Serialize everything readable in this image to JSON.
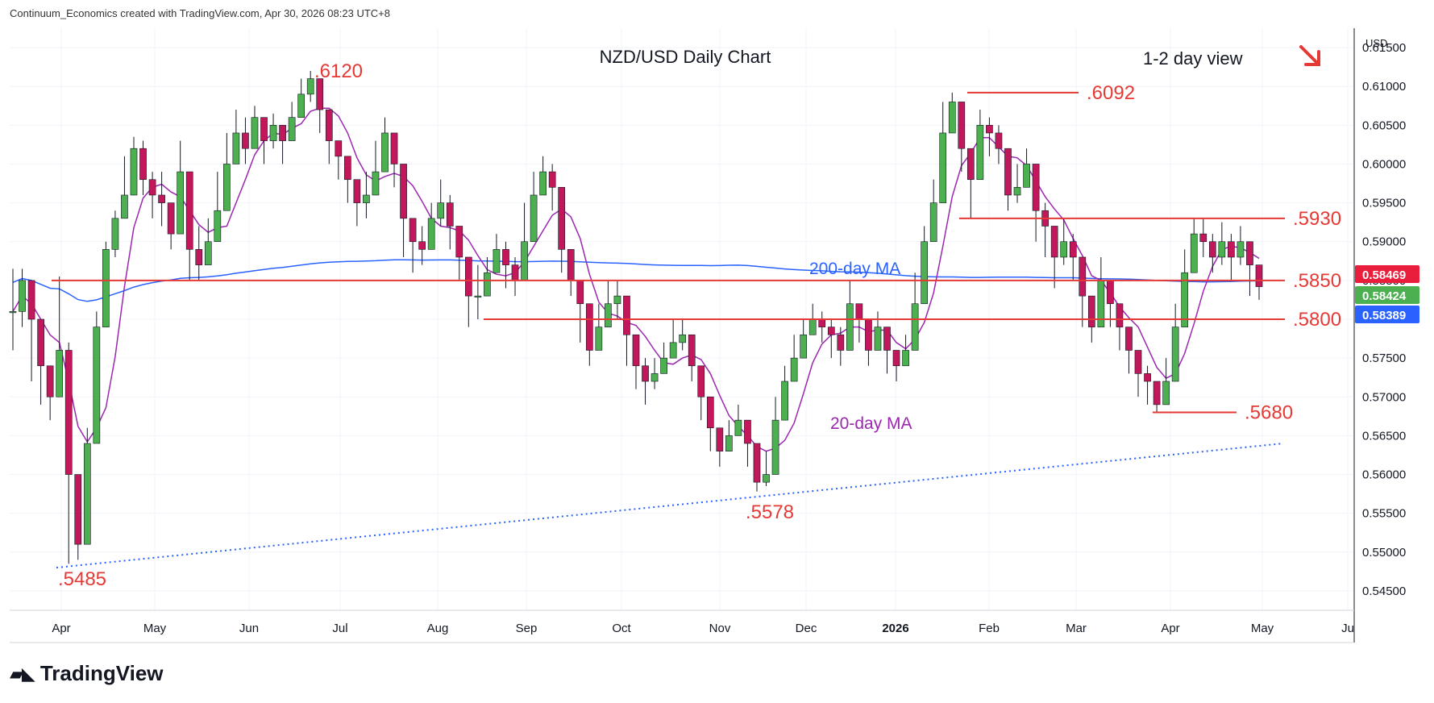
{
  "header": {
    "note": "Continuum_Economics created with TradingView.com, Apr 30, 2026 08:23 UTC+8"
  },
  "footer": {
    "brand": "TradingView"
  },
  "chart_data": {
    "type": "candlestick",
    "title": "NZD/USD Daily Chart",
    "view_label": "1-2 day view",
    "view_arrow": "down-right-arrow",
    "currency": "USD",
    "yticks": [
      "0.61500",
      "0.61000",
      "0.60500",
      "0.60000",
      "0.59500",
      "0.59000",
      "0.58500",
      "0.58000",
      "0.57500",
      "0.57000",
      "0.56500",
      "0.56000",
      "0.55500",
      "0.55000",
      "0.54500"
    ],
    "ylim": [
      0.5425,
      0.6175
    ],
    "xlabels": [
      "Apr",
      "May",
      "Jun",
      "Jul",
      "Aug",
      "Sep",
      "Oct",
      "Nov",
      "Dec",
      "2026",
      "Feb",
      "Mar",
      "Apr",
      "May",
      "Ju"
    ],
    "price_badges": [
      {
        "text": "0.58469",
        "color": "#e91e3c"
      },
      {
        "text": "0.58424",
        "color": "#4caf50"
      },
      {
        "text": "0.58389",
        "color": "#2962ff"
      }
    ],
    "levels": [
      {
        "label": ".6092",
        "value": 0.6092
      },
      {
        "label": ".5930",
        "value": 0.593
      },
      {
        "label": ".5850",
        "value": 0.585
      },
      {
        "label": ".5800",
        "value": 0.58
      },
      {
        "label": ".5680",
        "value": 0.568
      }
    ],
    "annotations": [
      {
        "label": ".6120",
        "value": 0.612
      },
      {
        "label": ".5578",
        "value": 0.5578
      },
      {
        "label": ".5485",
        "value": 0.5485
      }
    ],
    "ma_labels": {
      "ma200": "200-day MA",
      "ma20": "20-day MA"
    },
    "colors": {
      "up": "#4caf50",
      "down": "#c2185b",
      "levels": "#e53935",
      "ma200": "#2962ff",
      "ma20": "#9c27b0",
      "trend": "#2962ff"
    },
    "close_path": [
      [
        0.581,
        0.5865,
        0.576
      ],
      [
        0.585,
        0.5865,
        0.579
      ],
      [
        0.58,
        0.583,
        0.572
      ],
      [
        0.574,
        0.576,
        0.569
      ],
      [
        0.57,
        0.573,
        0.567
      ],
      [
        0.576,
        0.5855,
        0.574
      ],
      [
        0.56,
        0.577,
        0.5485
      ],
      [
        0.551,
        0.556,
        0.549
      ],
      [
        0.564,
        0.566,
        0.552
      ],
      [
        0.579,
        0.581,
        0.565
      ],
      [
        0.589,
        0.59,
        0.58
      ],
      [
        0.593,
        0.594,
        0.588
      ],
      [
        0.596,
        0.601,
        0.594
      ],
      [
        0.602,
        0.6035,
        0.598
      ],
      [
        0.598,
        0.603,
        0.596
      ],
      [
        0.596,
        0.599,
        0.593
      ],
      [
        0.595,
        0.599,
        0.592
      ],
      [
        0.591,
        0.595,
        0.589
      ],
      [
        0.599,
        0.603,
        0.596
      ],
      [
        0.589,
        0.592,
        0.585
      ],
      [
        0.587,
        0.592,
        0.585
      ],
      [
        0.59,
        0.593,
        0.588
      ],
      [
        0.594,
        0.599,
        0.592
      ],
      [
        0.6,
        0.604,
        0.597
      ],
      [
        0.604,
        0.607,
        0.601
      ],
      [
        0.602,
        0.606,
        0.6
      ],
      [
        0.606,
        0.6075,
        0.603
      ],
      [
        0.603,
        0.606,
        0.6
      ],
      [
        0.605,
        0.6065,
        0.602
      ],
      [
        0.603,
        0.605,
        0.6
      ],
      [
        0.606,
        0.608,
        0.604
      ],
      [
        0.609,
        0.611,
        0.607
      ],
      [
        0.611,
        0.612,
        0.608
      ],
      [
        0.607,
        0.61,
        0.604
      ],
      [
        0.603,
        0.606,
        0.6
      ],
      [
        0.601,
        0.603,
        0.598
      ],
      [
        0.598,
        0.601,
        0.595
      ],
      [
        0.595,
        0.598,
        0.592
      ],
      [
        0.596,
        0.599,
        0.593
      ],
      [
        0.599,
        0.603,
        0.597
      ],
      [
        0.604,
        0.606,
        0.601
      ],
      [
        0.6,
        0.603,
        0.597
      ],
      [
        0.593,
        0.597,
        0.588
      ],
      [
        0.59,
        0.593,
        0.586
      ],
      [
        0.589,
        0.592,
        0.587
      ],
      [
        0.593,
        0.595,
        0.59
      ],
      [
        0.595,
        0.598,
        0.592
      ],
      [
        0.592,
        0.596,
        0.589
      ],
      [
        0.588,
        0.591,
        0.585
      ],
      [
        0.583,
        0.588,
        0.579
      ],
      [
        0.583,
        0.587,
        0.58
      ],
      [
        0.586,
        0.588,
        0.583
      ],
      [
        0.589,
        0.591,
        0.586
      ],
      [
        0.587,
        0.59,
        0.584
      ],
      [
        0.585,
        0.588,
        0.583
      ],
      [
        0.59,
        0.595,
        0.588
      ],
      [
        0.596,
        0.599,
        0.594
      ],
      [
        0.599,
        0.601,
        0.597
      ],
      [
        0.597,
        0.6,
        0.594
      ],
      [
        0.589,
        0.594,
        0.586
      ],
      [
        0.585,
        0.588,
        0.583
      ],
      [
        0.582,
        0.585,
        0.577
      ],
      [
        0.576,
        0.58,
        0.574
      ],
      [
        0.579,
        0.582,
        0.577
      ],
      [
        0.582,
        0.585,
        0.58
      ],
      [
        0.583,
        0.585,
        0.58
      ],
      [
        0.578,
        0.58,
        0.574
      ],
      [
        0.574,
        0.576,
        0.571
      ],
      [
        0.572,
        0.575,
        0.569
      ],
      [
        0.573,
        0.575,
        0.571
      ],
      [
        0.575,
        0.577,
        0.573
      ],
      [
        0.577,
        0.58,
        0.575
      ],
      [
        0.578,
        0.58,
        0.576
      ],
      [
        0.574,
        0.577,
        0.572
      ],
      [
        0.57,
        0.573,
        0.567
      ],
      [
        0.566,
        0.57,
        0.563
      ],
      [
        0.563,
        0.566,
        0.561
      ],
      [
        0.565,
        0.567,
        0.563
      ],
      [
        0.567,
        0.569,
        0.565
      ],
      [
        0.564,
        0.567,
        0.561
      ],
      [
        0.559,
        0.563,
        0.5578
      ],
      [
        0.56,
        0.563,
        0.5585
      ],
      [
        0.567,
        0.57,
        0.565
      ],
      [
        0.572,
        0.574,
        0.57
      ],
      [
        0.575,
        0.578,
        0.573
      ],
      [
        0.578,
        0.58,
        0.576
      ],
      [
        0.58,
        0.582,
        0.578
      ],
      [
        0.579,
        0.581,
        0.577
      ],
      [
        0.578,
        0.58,
        0.575
      ],
      [
        0.576,
        0.579,
        0.574
      ],
      [
        0.582,
        0.585,
        0.58
      ],
      [
        0.58,
        0.582,
        0.577
      ],
      [
        0.576,
        0.579,
        0.574
      ],
      [
        0.579,
        0.581,
        0.577
      ],
      [
        0.576,
        0.579,
        0.573
      ],
      [
        0.574,
        0.576,
        0.572
      ],
      [
        0.576,
        0.578,
        0.574
      ],
      [
        0.582,
        0.586,
        0.58
      ],
      [
        0.59,
        0.592,
        0.587
      ],
      [
        0.595,
        0.598,
        0.593
      ],
      [
        0.604,
        0.608,
        0.601
      ],
      [
        0.608,
        0.6092,
        0.605
      ],
      [
        0.602,
        0.606,
        0.599
      ],
      [
        0.598,
        0.601,
        0.593
      ],
      [
        0.605,
        0.607,
        0.602
      ],
      [
        0.604,
        0.606,
        0.601
      ],
      [
        0.602,
        0.605,
        0.6
      ],
      [
        0.596,
        0.6,
        0.594
      ],
      [
        0.597,
        0.6,
        0.595
      ],
      [
        0.6,
        0.602,
        0.598
      ],
      [
        0.594,
        0.597,
        0.59
      ],
      [
        0.592,
        0.595,
        0.588
      ],
      [
        0.588,
        0.592,
        0.584
      ],
      [
        0.59,
        0.593,
        0.587
      ],
      [
        0.588,
        0.591,
        0.585
      ],
      [
        0.583,
        0.588,
        0.579
      ],
      [
        0.579,
        0.583,
        0.577
      ],
      [
        0.585,
        0.588,
        0.583
      ],
      [
        0.582,
        0.585,
        0.579
      ],
      [
        0.579,
        0.582,
        0.576
      ],
      [
        0.576,
        0.579,
        0.573
      ],
      [
        0.573,
        0.576,
        0.57
      ],
      [
        0.572,
        0.574,
        0.569
      ],
      [
        0.569,
        0.572,
        0.568
      ],
      [
        0.572,
        0.575,
        0.57
      ],
      [
        0.579,
        0.582,
        0.577
      ],
      [
        0.586,
        0.589,
        0.584
      ],
      [
        0.591,
        0.593,
        0.588
      ],
      [
        0.59,
        0.593,
        0.588
      ],
      [
        0.588,
        0.591,
        0.586
      ],
      [
        0.59,
        0.5925,
        0.587
      ],
      [
        0.588,
        0.591,
        0.585
      ],
      [
        0.59,
        0.592,
        0.587
      ],
      [
        0.587,
        0.589,
        0.583
      ],
      [
        0.5842,
        0.587,
        0.5825
      ]
    ]
  }
}
